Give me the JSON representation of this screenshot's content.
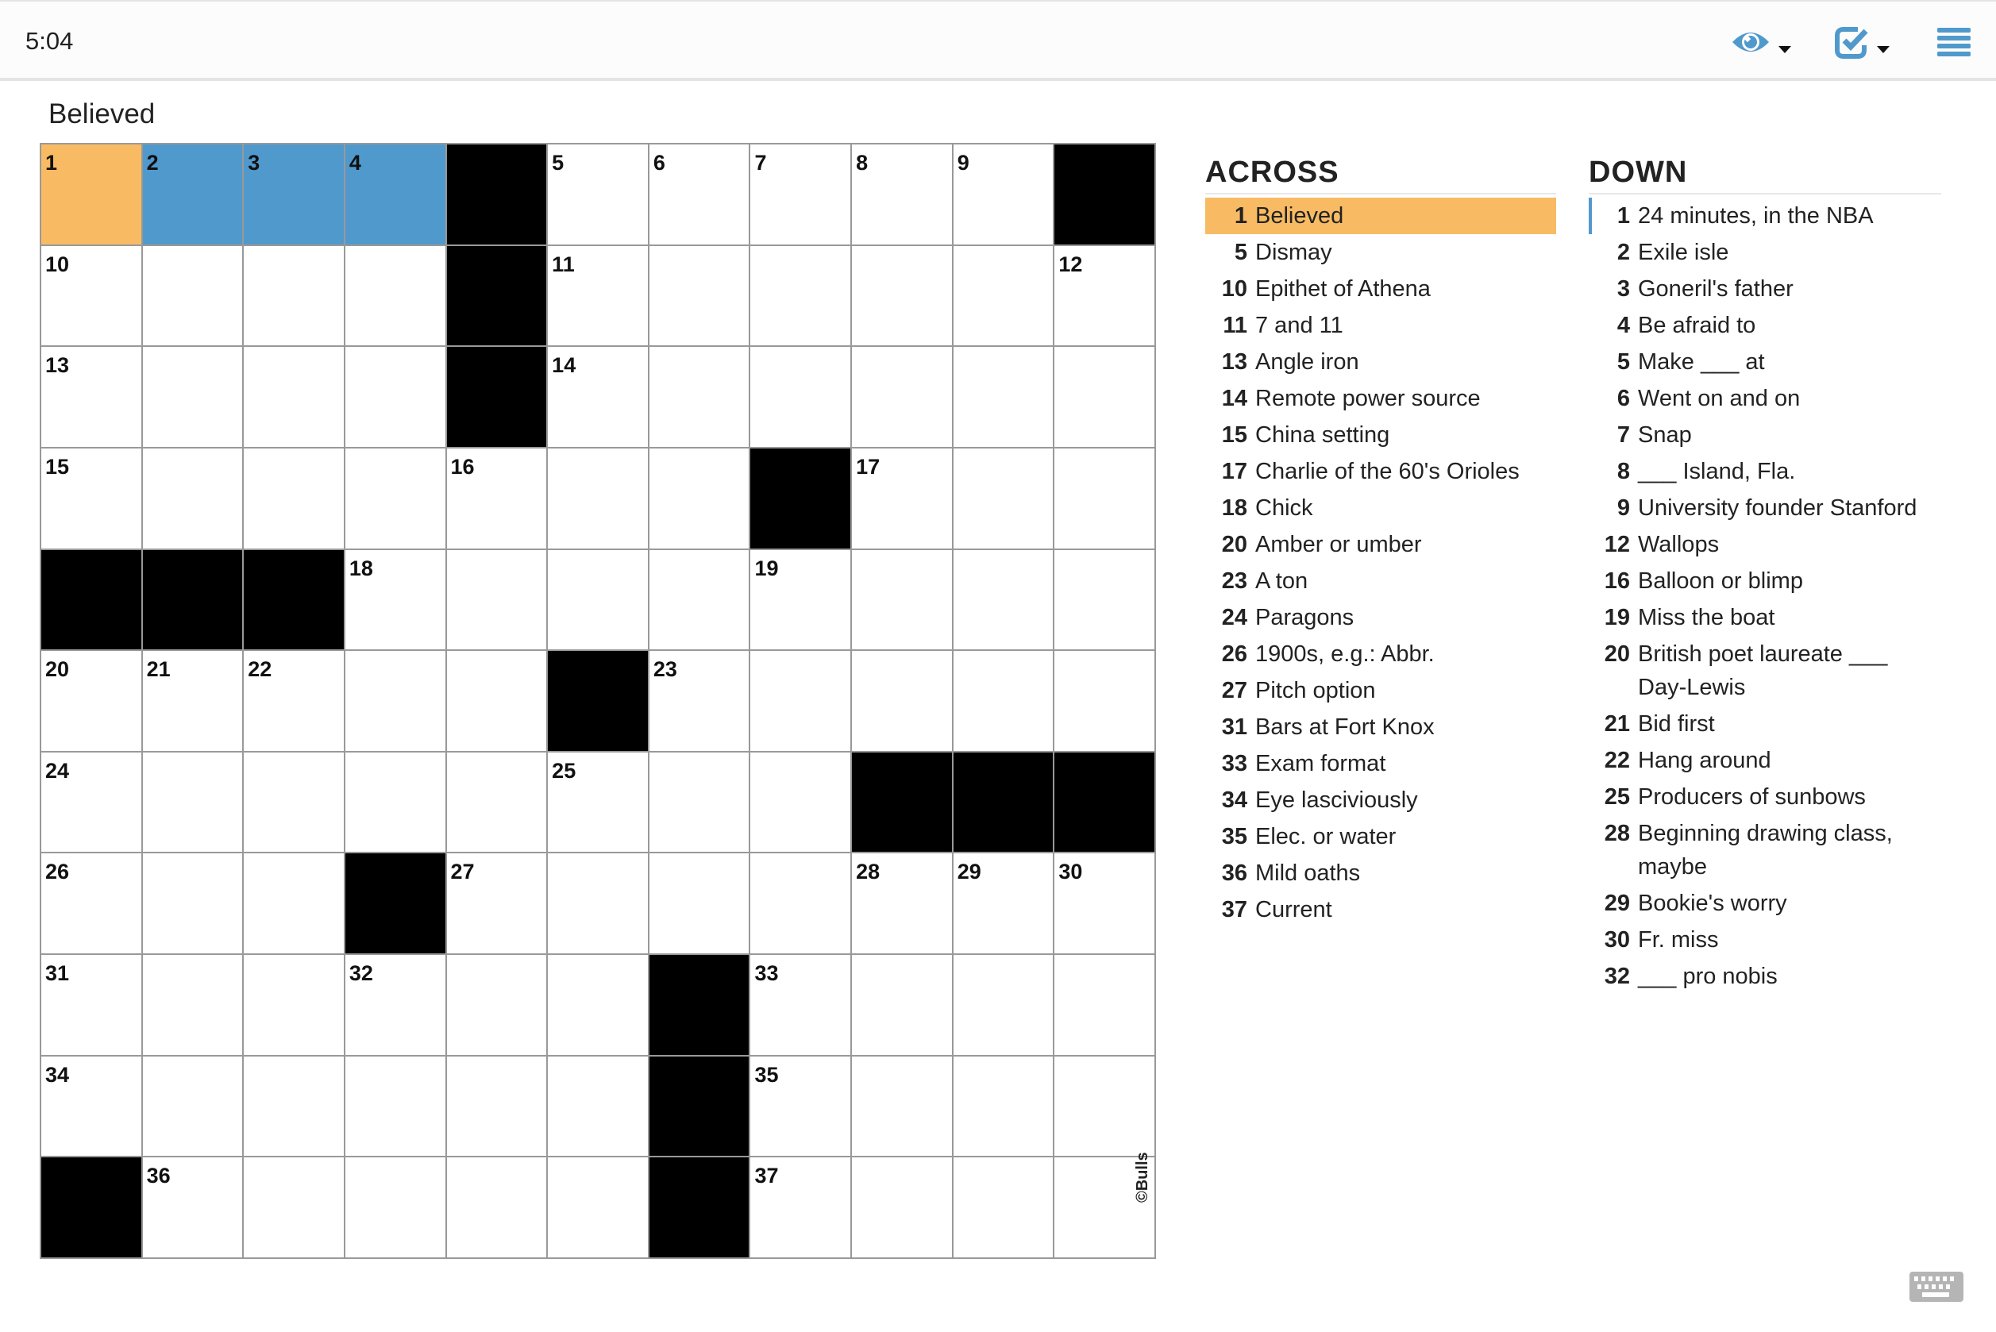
{
  "topbar": {
    "timer": "5:04",
    "icons": [
      "eye-icon",
      "checkbox-check-icon",
      "menu-icon"
    ],
    "accent_color": "#5099cc"
  },
  "current_clue": "Believed",
  "colors": {
    "selected_cell": "#f8bb63",
    "selected_word": "#5099cc",
    "black": "#000000"
  },
  "grid": {
    "rows": [
      [
        "1",
        "2",
        "3",
        "4",
        "#",
        "5",
        "6",
        "7",
        "8",
        "9",
        "#"
      ],
      [
        "10",
        "",
        "",
        "",
        "#",
        "11",
        "",
        "",
        "",
        "",
        "12"
      ],
      [
        "13",
        "",
        "",
        "",
        "#",
        "14",
        "",
        "",
        "",
        "",
        ""
      ],
      [
        "15",
        "",
        "",
        "",
        "16",
        "",
        "",
        "#",
        "17",
        "",
        ""
      ],
      [
        "#",
        "#",
        "#",
        "18",
        "",
        "",
        "",
        "19",
        "",
        "",
        ""
      ],
      [
        "20",
        "21",
        "22",
        "",
        "",
        "#",
        "23",
        "",
        "",
        "",
        ""
      ],
      [
        "24",
        "",
        "",
        "",
        "",
        "25",
        "",
        "",
        "#",
        "#",
        "#"
      ],
      [
        "26",
        "",
        "",
        "#",
        "27",
        "",
        "",
        "",
        "28",
        "29",
        "30"
      ],
      [
        "31",
        "",
        "",
        "32",
        "",
        "",
        "#",
        "33",
        "",
        "",
        ""
      ],
      [
        "34",
        "",
        "",
        "",
        "",
        "",
        "#",
        "35",
        "",
        "",
        ""
      ],
      [
        "#",
        "36",
        "",
        "",
        "",
        "",
        "#",
        "37",
        "",
        "",
        ""
      ]
    ],
    "selected": {
      "row": 0,
      "col": 0
    },
    "word": {
      "row": 0,
      "cols": [
        1,
        2,
        3
      ]
    },
    "copyright": "©Bulls"
  },
  "across": {
    "title": "ACROSS",
    "clues": [
      {
        "n": "1",
        "t": "Believed"
      },
      {
        "n": "5",
        "t": "Dismay"
      },
      {
        "n": "10",
        "t": "Epithet of Athena"
      },
      {
        "n": "11",
        "t": "7 and 11"
      },
      {
        "n": "13",
        "t": "Angle iron"
      },
      {
        "n": "14",
        "t": "Remote power source"
      },
      {
        "n": "15",
        "t": "China setting"
      },
      {
        "n": "17",
        "t": "Charlie of the 60's Orioles"
      },
      {
        "n": "18",
        "t": "Chick"
      },
      {
        "n": "20",
        "t": "Amber or umber"
      },
      {
        "n": "23",
        "t": "A ton"
      },
      {
        "n": "24",
        "t": "Paragons"
      },
      {
        "n": "26",
        "t": "1900s, e.g.: Abbr."
      },
      {
        "n": "27",
        "t": "Pitch option"
      },
      {
        "n": "31",
        "t": "Bars at Fort Knox"
      },
      {
        "n": "33",
        "t": "Exam format"
      },
      {
        "n": "34",
        "t": "Eye lasciviously"
      },
      {
        "n": "35",
        "t": "Elec. or water"
      },
      {
        "n": "36",
        "t": "Mild oaths"
      },
      {
        "n": "37",
        "t": "Current"
      }
    ]
  },
  "down": {
    "title": "DOWN",
    "clues": [
      {
        "n": "1",
        "t": "24 minutes, in the NBA"
      },
      {
        "n": "2",
        "t": "Exile isle"
      },
      {
        "n": "3",
        "t": "Goneril's father"
      },
      {
        "n": "4",
        "t": "Be afraid to"
      },
      {
        "n": "5",
        "t": "Make ___ at"
      },
      {
        "n": "6",
        "t": "Went on and on"
      },
      {
        "n": "7",
        "t": "Snap"
      },
      {
        "n": "8",
        "t": "___ Island, Fla."
      },
      {
        "n": "9",
        "t": "University founder Stanford"
      },
      {
        "n": "12",
        "t": "Wallops"
      },
      {
        "n": "16",
        "t": "Balloon or blimp"
      },
      {
        "n": "19",
        "t": "Miss the boat"
      },
      {
        "n": "20",
        "t": "British poet laureate ___ Day-Lewis"
      },
      {
        "n": "21",
        "t": "Bid first"
      },
      {
        "n": "22",
        "t": "Hang around"
      },
      {
        "n": "25",
        "t": "Producers of sunbows"
      },
      {
        "n": "28",
        "t": "Beginning drawing class, maybe"
      },
      {
        "n": "29",
        "t": "Bookie's worry"
      },
      {
        "n": "30",
        "t": "Fr. miss"
      },
      {
        "n": "32",
        "t": "___ pro nobis"
      }
    ]
  },
  "keyboard_icon": "keyboard-icon"
}
